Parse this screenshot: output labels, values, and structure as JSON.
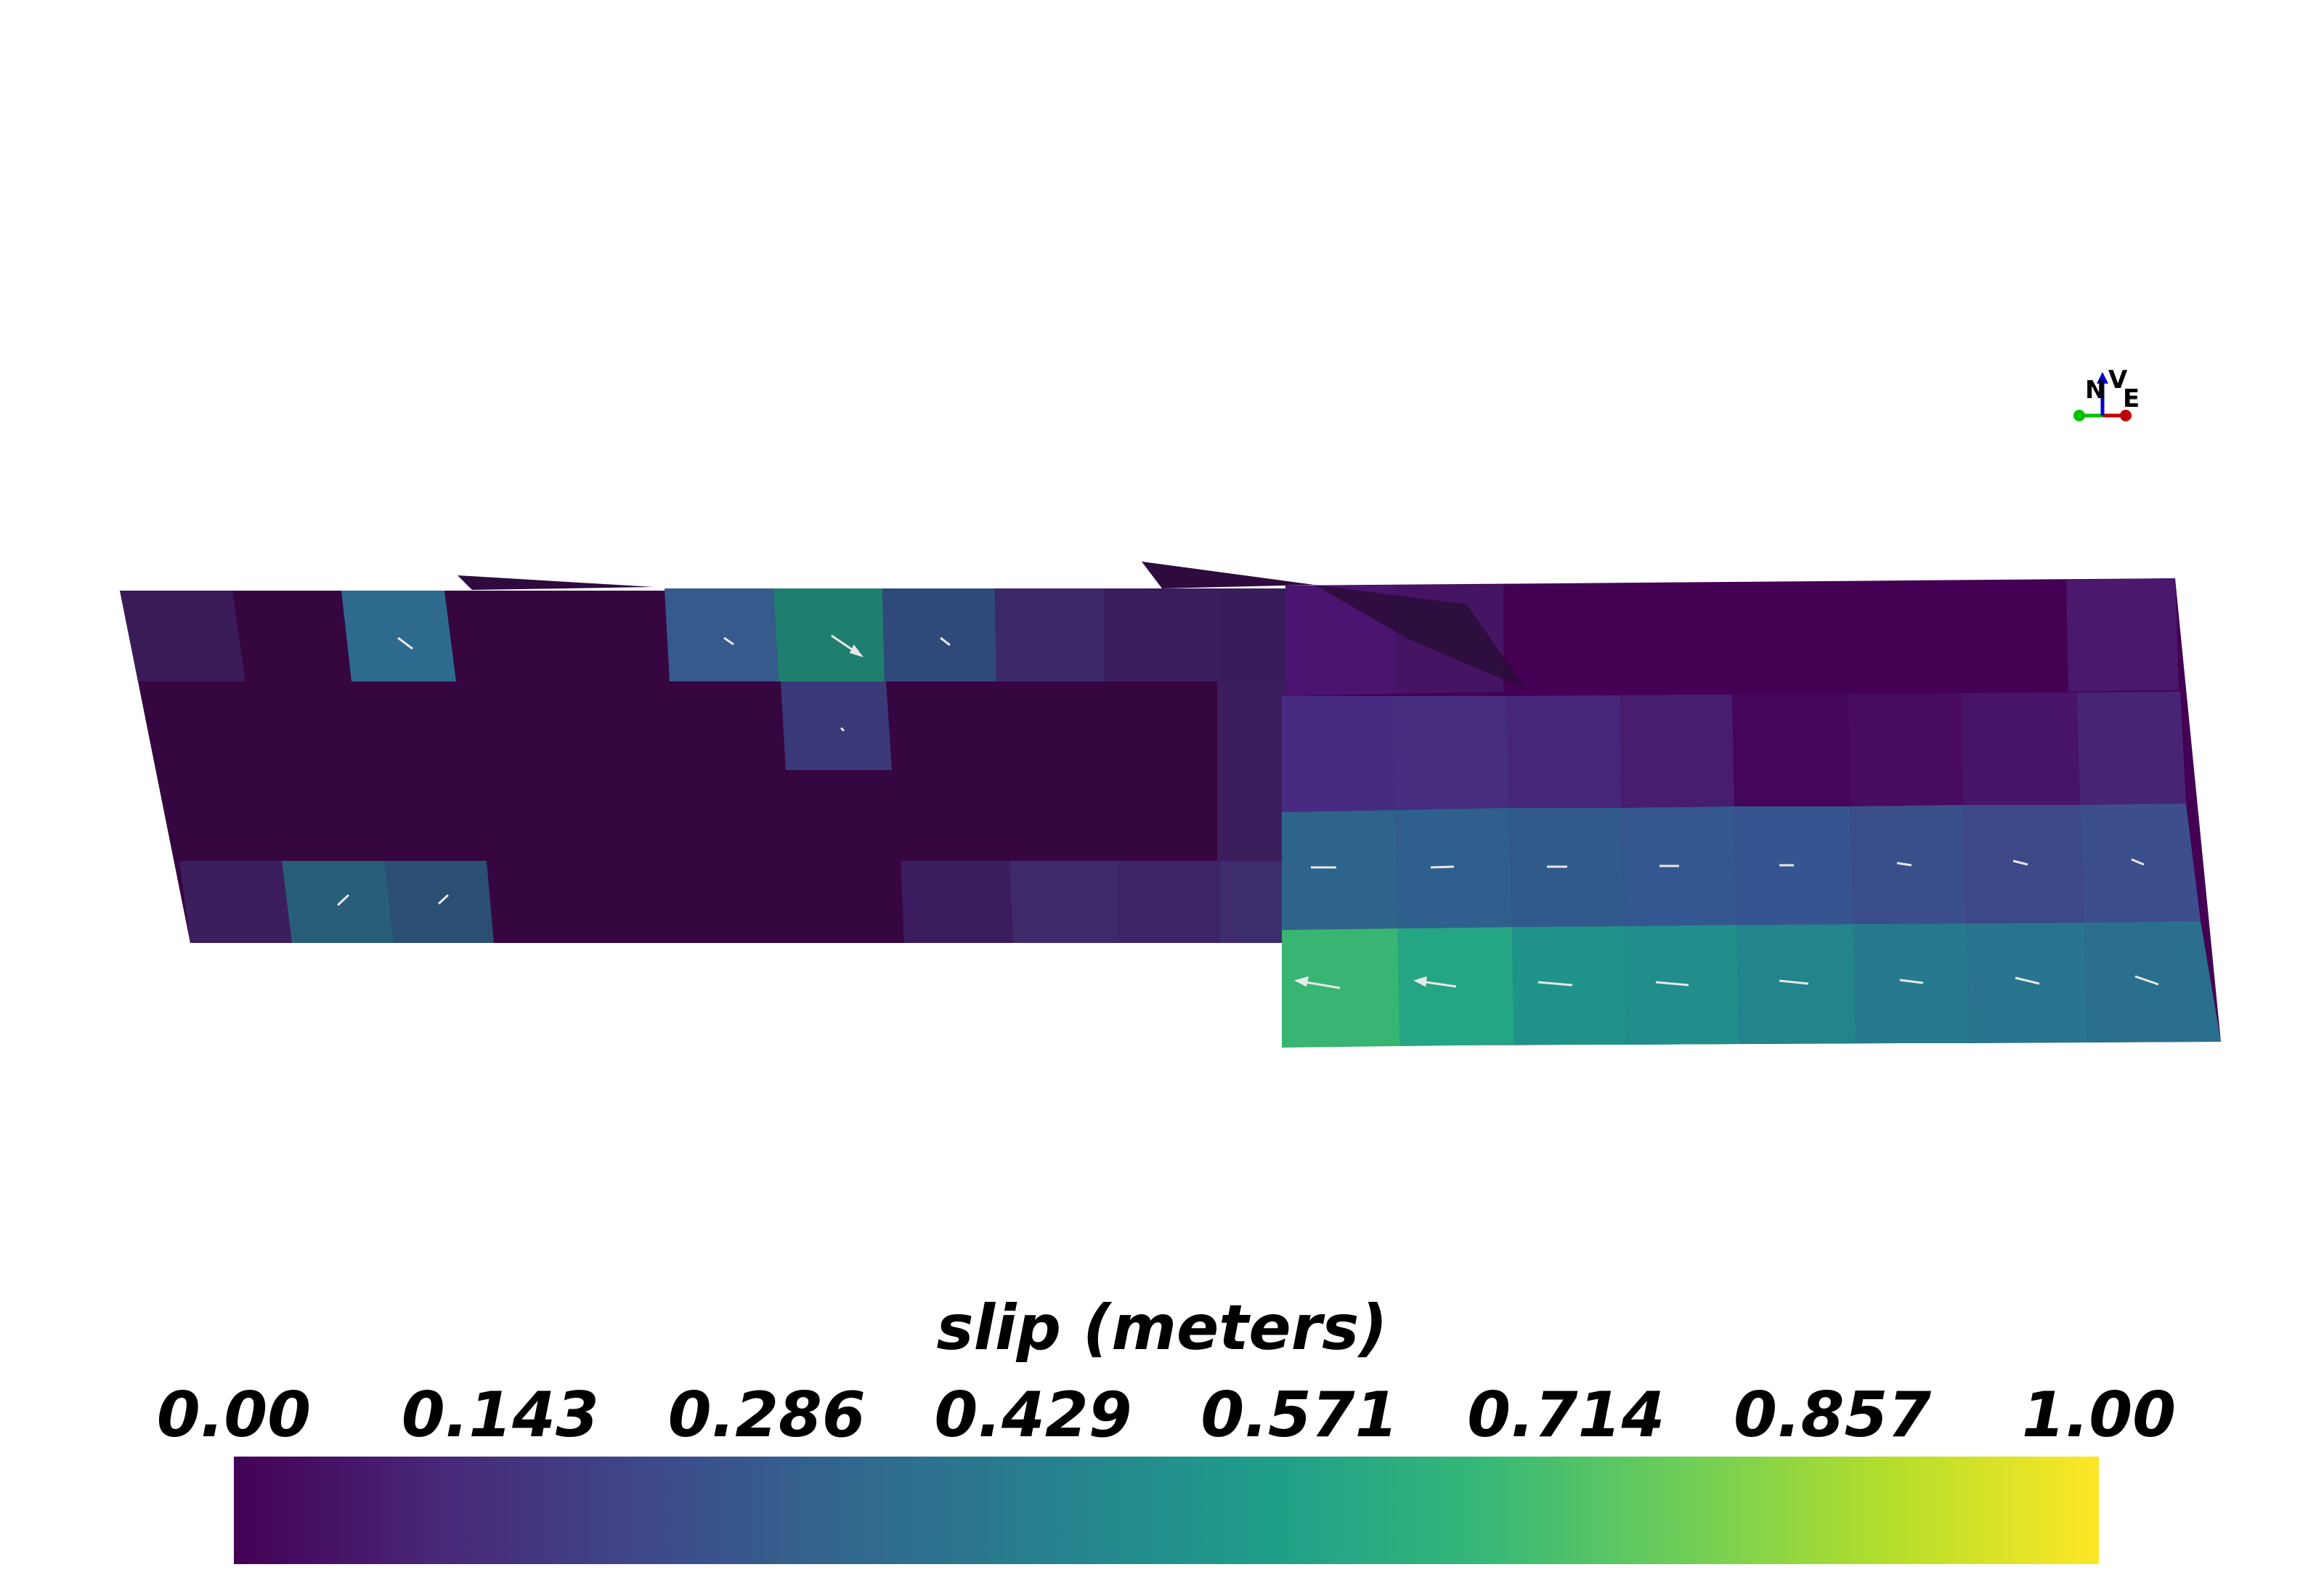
{
  "colorbar": {
    "title": "slip (meters)",
    "ticks": [
      "0.00",
      "0.143",
      "0.286",
      "0.429",
      "0.571",
      "0.714",
      "0.857",
      "1.00"
    ],
    "range": [
      0,
      1
    ],
    "colormap": [
      "#440154",
      "#482878",
      "#3e4989",
      "#31688e",
      "#26828e",
      "#1f9e89",
      "#35b779",
      "#6ece58",
      "#b5de2b",
      "#fde725"
    ]
  },
  "axes_widget": {
    "labels": {
      "north": "N",
      "vertical": "V",
      "east": "E"
    },
    "colors": {
      "north": "#00c000",
      "vertical": "#0000d0",
      "east": "#c00000"
    }
  }
}
